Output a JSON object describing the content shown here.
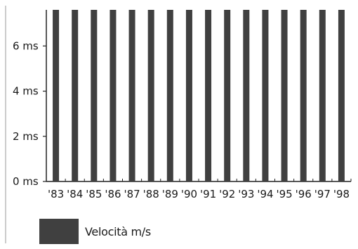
{
  "chart_data": {
    "type": "bar",
    "categories": [
      "'83",
      "'84",
      "'85",
      "'86",
      "'87",
      "'88",
      "'89",
      "'90",
      "'91",
      "'92",
      "'93",
      "'94",
      "'95",
      "'96",
      "'97",
      "'98"
    ],
    "series": [
      {
        "name": "Velocità m/s",
        "values": [
          7.6,
          7.6,
          7.6,
          7.6,
          7.6,
          7.6,
          7.6,
          7.6,
          7.6,
          7.6,
          7.6,
          7.6,
          7.6,
          7.6,
          7.6,
          7.6
        ]
      }
    ],
    "yticks": [
      {
        "value": 0,
        "label": "0 ms"
      },
      {
        "value": 2,
        "label": "2 ms"
      },
      {
        "value": 4,
        "label": "4 ms"
      },
      {
        "value": 6,
        "label": "6 ms"
      }
    ],
    "ylim": [
      0,
      7.6
    ],
    "title": "",
    "xlabel": "",
    "ylabel": "",
    "legend_position": "bottom-left",
    "bar_color": "#404040"
  }
}
